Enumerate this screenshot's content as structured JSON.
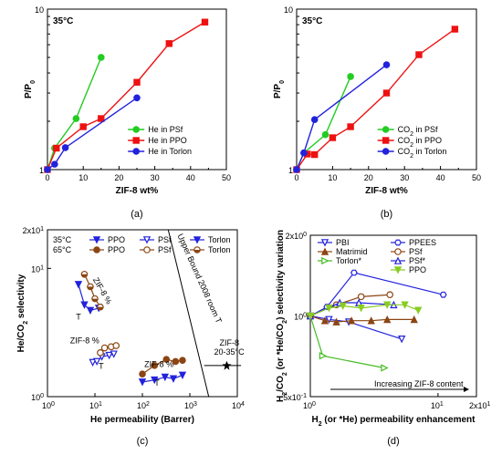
{
  "chart_data": [
    {
      "panel": "(a)",
      "type": "line",
      "temperature_label": "35°C",
      "xlabel": "ZIF-8 wt%",
      "ylabel": "P/P",
      "ylabel_sub": "0",
      "x_ticks": [
        "0",
        "10",
        "20",
        "30",
        "40",
        "50"
      ],
      "y_ticks": [
        "1",
        "10"
      ],
      "xlim": [
        0,
        50
      ],
      "ylim": [
        1,
        10
      ],
      "yscale": "log",
      "legend": "bottom-right",
      "series": [
        {
          "name": "He in PSf",
          "color": "#22cc22",
          "marker": "circle",
          "x": [
            0,
            2,
            8,
            15
          ],
          "y": [
            1,
            1.36,
            2.08,
            5.0
          ]
        },
        {
          "name": "He in PPO",
          "color": "#ee1111",
          "marker": "square",
          "x": [
            0,
            2.5,
            10,
            15,
            25,
            34,
            44
          ],
          "y": [
            1,
            1.36,
            1.85,
            2.08,
            3.5,
            6.1,
            8.3
          ]
        },
        {
          "name": "He in Torlon",
          "color": "#2222dd",
          "marker": "circle",
          "x": [
            0,
            2,
            5,
            25
          ],
          "y": [
            1,
            1.08,
            1.37,
            2.8
          ]
        }
      ]
    },
    {
      "panel": "(b)",
      "type": "line",
      "temperature_label": "35°C",
      "xlabel": "ZIF-8 wt%",
      "ylabel": "P/P",
      "ylabel_sub": "0",
      "x_ticks": [
        "0",
        "10",
        "20",
        "30",
        "40",
        "50"
      ],
      "y_ticks": [
        "1",
        "10"
      ],
      "xlim": [
        0,
        50
      ],
      "ylim": [
        1,
        10
      ],
      "yscale": "log",
      "legend": "bottom-right",
      "series": [
        {
          "name": "CO2 in PSf",
          "label_pre": "CO",
          "label_sub": "2",
          "label_post": " in PSf",
          "color": "#22cc22",
          "marker": "circle",
          "x": [
            0,
            2,
            8,
            15
          ],
          "y": [
            1,
            1.27,
            1.65,
            3.8
          ]
        },
        {
          "name": "CO2 in PPO",
          "label_pre": "CO",
          "label_sub": "2",
          "label_post": " in PPO",
          "color": "#ee1111",
          "marker": "square",
          "x": [
            0,
            3,
            5,
            10,
            15,
            25,
            34,
            44
          ],
          "y": [
            1,
            1.25,
            1.24,
            1.58,
            1.85,
            3.0,
            5.2,
            7.5
          ]
        },
        {
          "name": "CO2 in Torlon",
          "label_pre": "CO",
          "label_sub": "2",
          "label_post": " in Torlon",
          "color": "#2222dd",
          "marker": "circle",
          "x": [
            0,
            2,
            5,
            25
          ],
          "y": [
            1,
            1.27,
            2.05,
            4.5
          ]
        }
      ]
    },
    {
      "panel": "(c)",
      "type": "scatter",
      "xlabel": "He permeability (Barrer)",
      "ylabel": "He/CO",
      "ylabel_sub": "2",
      "ylabel_post": " selectivity",
      "xscale": "log",
      "yscale": "log",
      "xlim": [
        1,
        10000
      ],
      "ylim": [
        1,
        20
      ],
      "x_ticks": [
        {
          "base": "10",
          "exp": "0"
        },
        {
          "base": "10",
          "exp": "1"
        },
        {
          "base": "10",
          "exp": "2"
        },
        {
          "base": "10",
          "exp": "3"
        },
        {
          "base": "10",
          "exp": "4"
        }
      ],
      "y_ticks": [
        {
          "base": "10",
          "exp": "0"
        },
        {
          "base": "10",
          "exp": "1"
        },
        {
          "base": "2x10",
          "exp": "1"
        }
      ],
      "legend_rows": [
        {
          "temp": "35°C",
          "items": [
            "PPO",
            "PSf",
            "Torlon"
          ]
        },
        {
          "temp": "65°C",
          "items": [
            "PPO",
            "PSf",
            "Torlon"
          ]
        }
      ],
      "upper_bound_label": "Upper Bound 2008 room T",
      "upper_bound_line": {
        "x": [
          350,
          2500
        ],
        "y": [
          20,
          1
        ]
      },
      "zif8_point": {
        "label_line1": "ZIF-8",
        "label_line2": "20-35°C",
        "x": 6000,
        "y": 1.75,
        "xerr_low": 2000,
        "xerr_high": 12000
      },
      "annotations": [
        "ZIF-8 %",
        "ZIF-8 %",
        "ZIF-8 %",
        "T",
        "T",
        "T"
      ],
      "series": [
        {
          "name": "PPO 35°C",
          "color": "#2222dd",
          "marker": "triangle-down-filled",
          "x": [
            100,
            180,
            300,
            450,
            700
          ],
          "y": [
            1.3,
            1.35,
            1.42,
            1.38,
            1.47
          ]
        },
        {
          "name": "PSf 35°C",
          "color": "#2222dd",
          "marker": "triangle-down-open",
          "x": [
            9,
            11,
            14,
            20,
            25
          ],
          "y": [
            1.85,
            1.88,
            2.05,
            2.1,
            2.15
          ]
        },
        {
          "name": "Torlon 35°C",
          "color": "#2222dd",
          "marker": "triangle-down-filled",
          "x": [
            4.5,
            6,
            8,
            12
          ],
          "y": [
            7.5,
            5.2,
            4.7,
            4.9
          ]
        },
        {
          "name": "PPO 65°C",
          "color": "#8b4513",
          "marker": "circle-filled",
          "x": [
            100,
            180,
            320,
            500,
            700
          ],
          "y": [
            1.5,
            1.75,
            1.95,
            1.88,
            1.92
          ]
        },
        {
          "name": "PSf 65°C",
          "color": "#8b4513",
          "marker": "circle-open",
          "x": [
            13,
            16,
            22,
            28
          ],
          "y": [
            2.2,
            2.4,
            2.45,
            2.5
          ]
        },
        {
          "name": "Torlon 65°C",
          "color": "#8b4513",
          "marker": "circle-half",
          "x": [
            6,
            8,
            10,
            13
          ],
          "y": [
            9.0,
            7.2,
            5.8,
            5.0
          ]
        }
      ]
    },
    {
      "panel": "(d)",
      "type": "line",
      "xlabel": "H",
      "xlabel_sub": "2",
      "xlabel_post": " (or *He) permeability enhancement",
      "ylabel": "H",
      "ylabel_sub": "2",
      "ylabel_mid": "/CO",
      "ylabel_sub2": "2",
      "ylabel_post": " (or *He/CO",
      "ylabel_sub3": "2",
      "ylabel_end": ") selectivity variation",
      "xscale": "log",
      "yscale": "log",
      "xlim": [
        1,
        20
      ],
      "ylim": [
        0.5,
        2
      ],
      "x_ticks": [
        {
          "base": "10",
          "exp": "0"
        },
        {
          "base": "10",
          "exp": "1"
        },
        {
          "base": "2x10",
          "exp": "1"
        }
      ],
      "y_ticks": [
        {
          "base": "5x10",
          "exp": "-1"
        },
        {
          "base": "10",
          "exp": "0"
        },
        {
          "base": "2x10",
          "exp": "0"
        }
      ],
      "annotation": "Increasing ZIF-8 content",
      "legend": "top",
      "series": [
        {
          "name": "PBI",
          "color": "#2222dd",
          "marker": "triangle-down-open",
          "x": [
            1.0,
            1.4,
            2.0,
            5.2
          ],
          "y": [
            1.0,
            0.97,
            0.95,
            0.82
          ]
        },
        {
          "name": "Matrimid",
          "color": "#8b4513",
          "marker": "triangle-up-filled",
          "x": [
            1.0,
            1.3,
            1.6,
            2.1,
            3.0,
            4.0,
            6.5
          ],
          "y": [
            1.0,
            0.96,
            0.95,
            0.96,
            0.96,
            0.97,
            0.97
          ]
        },
        {
          "name": "Torlon*",
          "color": "#44bb22",
          "marker": "triangle-right-open",
          "x": [
            1.0,
            1.25,
            3.8
          ],
          "y": [
            1.0,
            0.71,
            0.64
          ]
        },
        {
          "name": "PPEES",
          "color": "#2222dd",
          "marker": "hexagon-open",
          "x": [
            1.0,
            1.35,
            2.2,
            11.0
          ],
          "y": [
            1.0,
            1.08,
            1.45,
            1.2
          ]
        },
        {
          "name": "PSf",
          "color": "#8b4513",
          "marker": "circle-open",
          "x": [
            1.0,
            1.6,
            2.5,
            4.2
          ],
          "y": [
            1.0,
            1.1,
            1.18,
            1.2
          ]
        },
        {
          "name": "PSf*",
          "color": "#2222dd",
          "marker": "triangle-up-open",
          "x": [
            1.0,
            1.7,
            2.4,
            4.5
          ],
          "y": [
            1.0,
            1.12,
            1.12,
            1.1
          ]
        },
        {
          "name": "PPO",
          "color": "#88cc22",
          "marker": "triangle-down-filled",
          "x": [
            1.0,
            1.4,
            1.8,
            2.5,
            4.0,
            5.5,
            7.0
          ],
          "y": [
            1.0,
            1.07,
            1.09,
            1.07,
            1.1,
            1.1,
            1.05
          ]
        }
      ]
    }
  ]
}
